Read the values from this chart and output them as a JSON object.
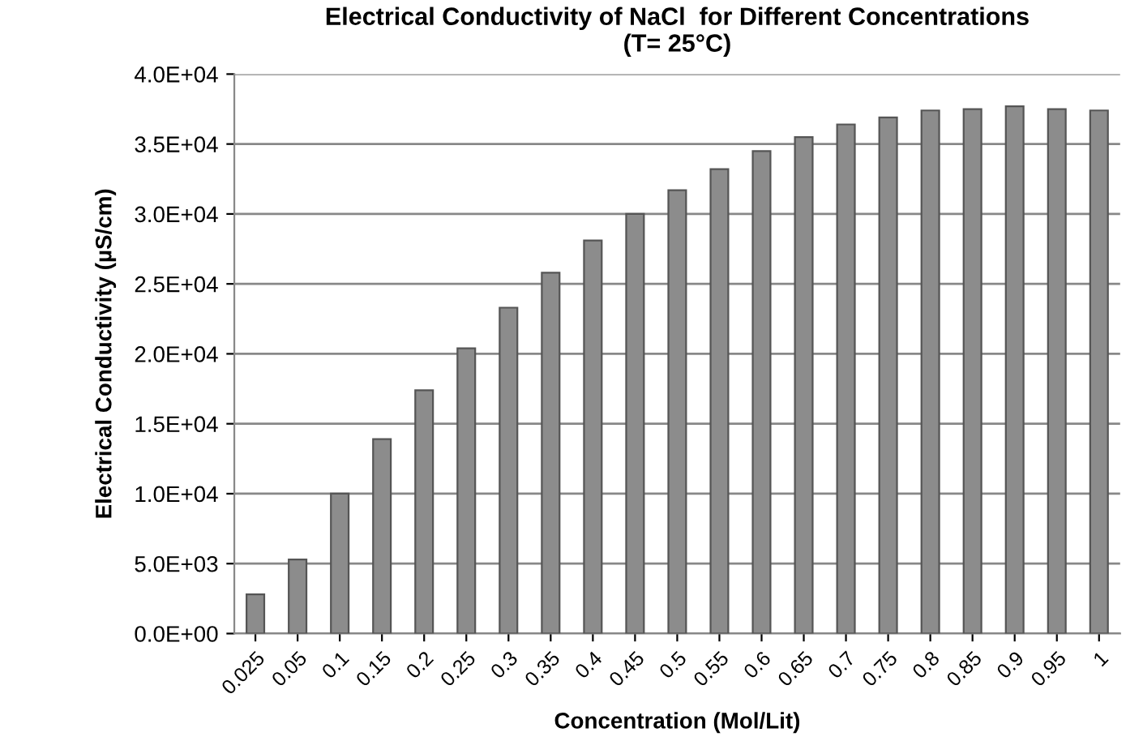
{
  "chart_data": {
    "type": "bar",
    "title": "Electrical Conductivity of NaCl  for Different Concentrations\n(T= 25°C)",
    "xlabel": "Concentration (Mol/Lit)",
    "ylabel": "Electrical Conductivity (µS/cm)",
    "categories": [
      "0.025",
      "0.05",
      "0.1",
      "0.15",
      "0.2",
      "0.25",
      "0.3",
      "0.35",
      "0.4",
      "0.45",
      "0.5",
      "0.55",
      "0.6",
      "0.65",
      "0.7",
      "0.75",
      "0.8",
      "0.85",
      "0.9",
      "0.95",
      "1"
    ],
    "values": [
      2800,
      5300,
      10000,
      13900,
      17400,
      20400,
      23300,
      25800,
      28100,
      30000,
      31700,
      33200,
      34500,
      35500,
      36400,
      36900,
      37400,
      37500,
      37700,
      37500,
      37400
    ],
    "color": "#8c8c8c",
    "ylim": [
      0,
      40000
    ],
    "yticks": [
      {
        "value": 0,
        "label": "0.0E+00"
      },
      {
        "value": 5000,
        "label": "5.0E+03"
      },
      {
        "value": 10000,
        "label": "1.0E+04"
      },
      {
        "value": 15000,
        "label": "1.5E+04"
      },
      {
        "value": 20000,
        "label": "2.0E+04"
      },
      {
        "value": 25000,
        "label": "2.5E+04"
      },
      {
        "value": 30000,
        "label": "3.0E+04"
      },
      {
        "value": 35000,
        "label": "3.5E+04"
      },
      {
        "value": 40000,
        "label": "4.0E+04"
      }
    ],
    "grid": "y"
  }
}
